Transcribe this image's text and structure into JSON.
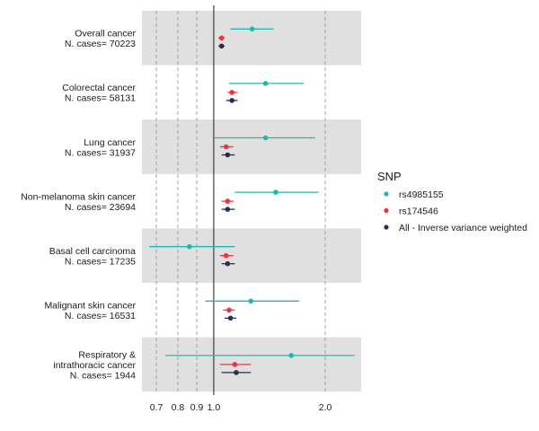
{
  "chart_data": {
    "type": "forest",
    "title": "",
    "xlabel": "",
    "ylabel": "",
    "x_scale": "log",
    "xlim": [
      0.64,
      2.5
    ],
    "x_ticks": [
      0.7,
      0.8,
      0.9,
      1.0,
      2.0
    ],
    "x_tick_labels": [
      "0.7",
      "0.8",
      "0.9",
      "1.0",
      "2.0"
    ],
    "reference_line": 1.0,
    "grid": "dashed vertical lines at tick positions",
    "legend": {
      "title": "SNP",
      "placement": "right",
      "entries": [
        {
          "label": "rs4985155",
          "color": "#1fb8b1"
        },
        {
          "label": "rs174546",
          "color": "#f0323f"
        },
        {
          "label": "All - Inverse variance weighted",
          "color": "#27314a"
        }
      ]
    },
    "groups": [
      {
        "label_lines": [
          "Overall cancer",
          "N. cases= 70223"
        ],
        "shaded": true,
        "estimates": [
          {
            "series": "rs4985155",
            "est": 1.27,
            "lo": 1.11,
            "hi": 1.45
          },
          {
            "series": "rs174546",
            "est": 1.05,
            "lo": 1.03,
            "hi": 1.07
          },
          {
            "series": "All - Inverse variance weighted",
            "est": 1.05,
            "lo": 1.03,
            "hi": 1.07
          }
        ]
      },
      {
        "label_lines": [
          "Colorectal cancer",
          "N. cases= 58131"
        ],
        "shaded": false,
        "estimates": [
          {
            "series": "rs4985155",
            "est": 1.38,
            "lo": 1.1,
            "hi": 1.75
          },
          {
            "series": "rs174546",
            "est": 1.12,
            "lo": 1.09,
            "hi": 1.16
          },
          {
            "series": "All - Inverse variance weighted",
            "est": 1.12,
            "lo": 1.08,
            "hi": 1.16
          }
        ]
      },
      {
        "label_lines": [
          "Lung cancer",
          "N. cases= 31937"
        ],
        "shaded": true,
        "estimates": [
          {
            "series": "rs4985155",
            "est": 1.38,
            "lo": 1.0,
            "hi": 1.88
          },
          {
            "series": "rs174546",
            "est": 1.08,
            "lo": 1.04,
            "hi": 1.13
          },
          {
            "series": "All - Inverse variance weighted",
            "est": 1.09,
            "lo": 1.05,
            "hi": 1.14
          }
        ]
      },
      {
        "label_lines": [
          "Non-melanoma skin cancer",
          "N. cases= 23694"
        ],
        "shaded": false,
        "estimates": [
          {
            "series": "rs4985155",
            "est": 1.47,
            "lo": 1.14,
            "hi": 1.92
          },
          {
            "series": "rs174546",
            "est": 1.09,
            "lo": 1.05,
            "hi": 1.13
          },
          {
            "series": "All - Inverse variance weighted",
            "est": 1.09,
            "lo": 1.05,
            "hi": 1.14
          }
        ]
      },
      {
        "label_lines": [
          "Basal cell carcinoma",
          "N. cases= 17235"
        ],
        "shaded": true,
        "estimates": [
          {
            "series": "rs4985155",
            "est": 0.86,
            "lo": 0.67,
            "hi": 1.14
          },
          {
            "series": "rs174546",
            "est": 1.08,
            "lo": 1.04,
            "hi": 1.13
          },
          {
            "series": "All - Inverse variance weighted",
            "est": 1.09,
            "lo": 1.05,
            "hi": 1.14
          }
        ]
      },
      {
        "label_lines": [
          "Malignant skin cancer",
          "N. cases= 16531"
        ],
        "shaded": false,
        "estimates": [
          {
            "series": "rs4985155",
            "est": 1.26,
            "lo": 0.95,
            "hi": 1.7
          },
          {
            "series": "rs174546",
            "est": 1.1,
            "lo": 1.06,
            "hi": 1.14
          },
          {
            "series": "All - Inverse variance weighted",
            "est": 1.11,
            "lo": 1.07,
            "hi": 1.15
          }
        ]
      },
      {
        "label_lines": [
          "Respiratory &",
          "intrathoracic cancer",
          "N. cases= 1944"
        ],
        "shaded": true,
        "estimates": [
          {
            "series": "rs4985155",
            "est": 1.62,
            "lo": 0.74,
            "hi": 2.4
          },
          {
            "series": "rs174546",
            "est": 1.14,
            "lo": 1.04,
            "hi": 1.26
          },
          {
            "series": "All - Inverse variance weighted",
            "est": 1.15,
            "lo": 1.05,
            "hi": 1.26
          }
        ]
      }
    ]
  }
}
